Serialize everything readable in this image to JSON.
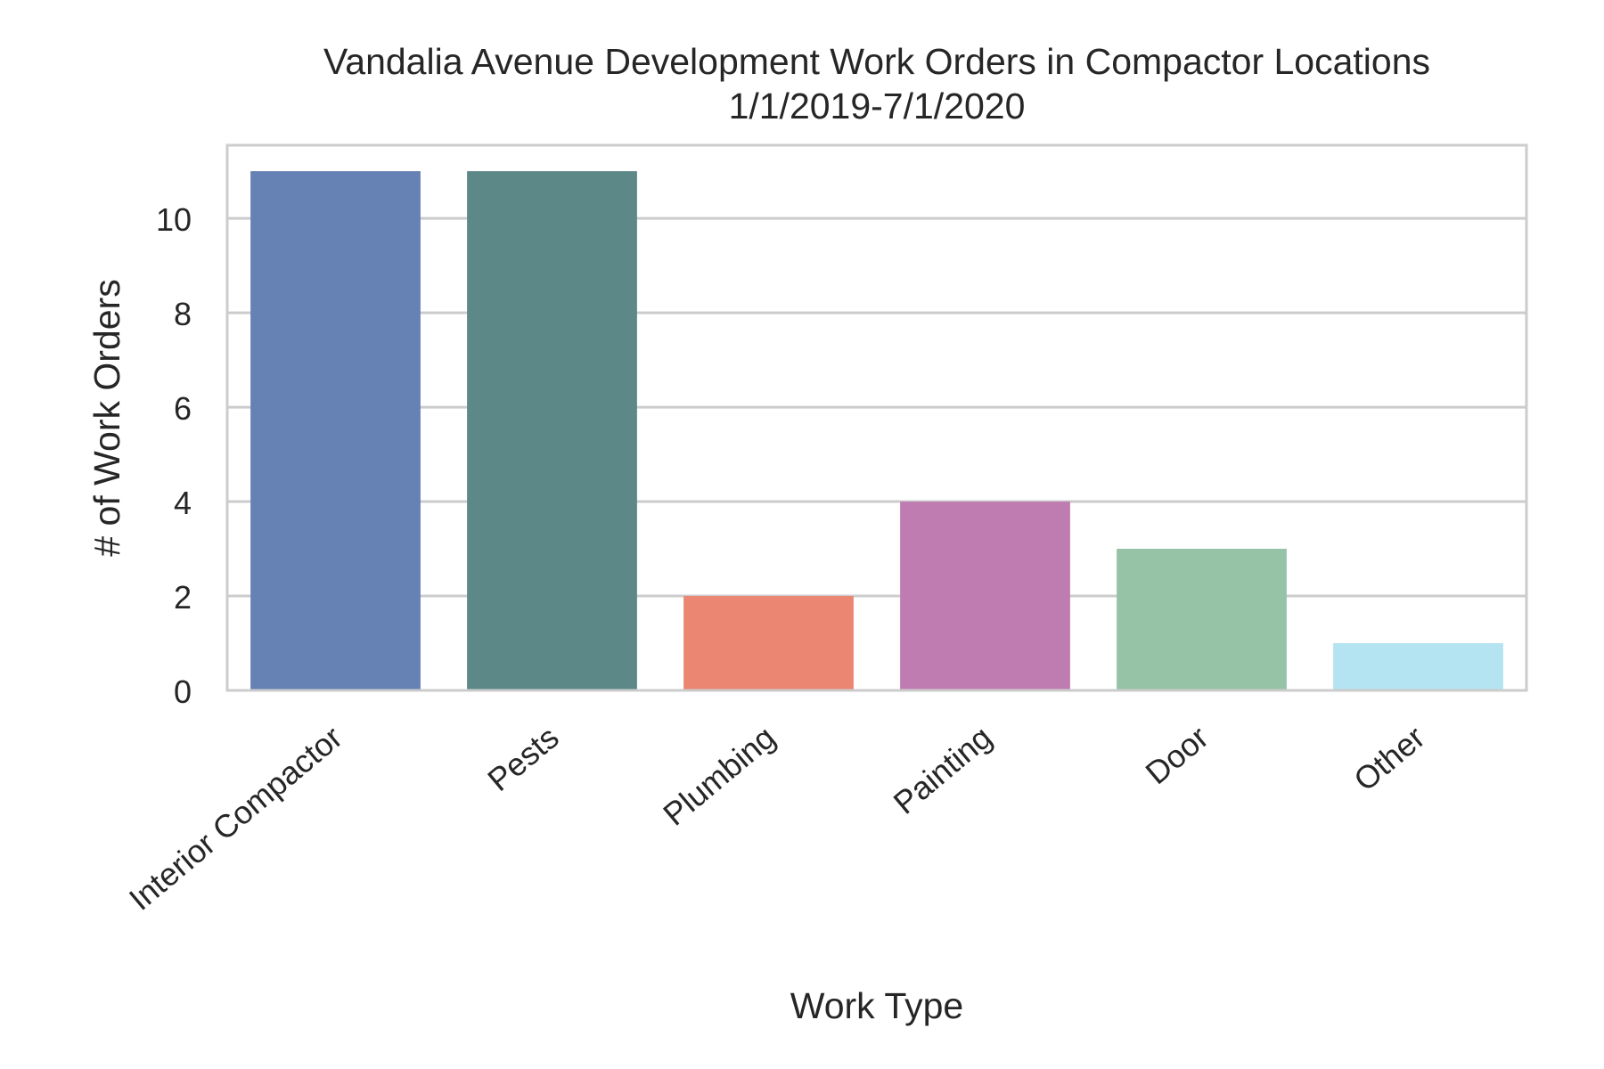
{
  "chart_data": {
    "type": "bar",
    "title": "Vandalia Avenue Development Work Orders in Compactor Locations",
    "subtitle": "1/1/2019-7/1/2020",
    "xlabel": "Work Type",
    "ylabel": "# of Work Orders",
    "categories": [
      "Interior Compactor",
      "Pests",
      "Plumbing",
      "Painting",
      "Door",
      "Other"
    ],
    "values": [
      11,
      11,
      2,
      4,
      3,
      1
    ],
    "colors": [
      "#6681b3",
      "#5c8888",
      "#ea8672",
      "#bf7cb0",
      "#96c2a5",
      "#b4e3f1"
    ],
    "ylim": [
      0,
      11.55
    ],
    "yticks": [
      "0",
      "2",
      "4",
      "6",
      "8",
      "10"
    ],
    "grid": true,
    "legend": "none"
  }
}
